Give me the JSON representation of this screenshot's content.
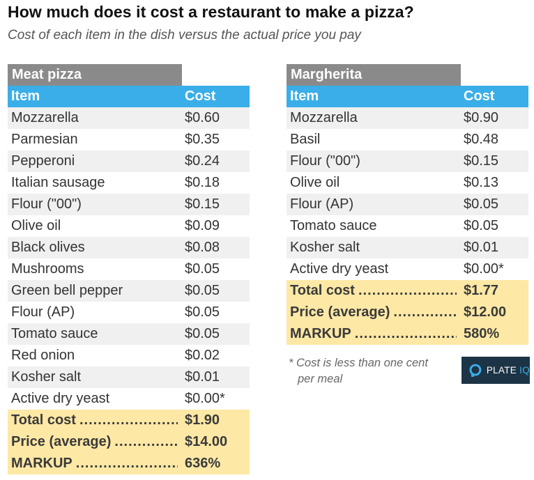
{
  "title": "How much does it cost a restaurant to make a pizza?",
  "subtitle": "Cost of each item in the dish versus the actual price you pay",
  "column_headers": {
    "item": "Item",
    "cost": "Cost"
  },
  "tables": {
    "meat": {
      "name": "Meat pizza",
      "rows": [
        {
          "item": "Mozzarella",
          "cost": "$0.60"
        },
        {
          "item": "Parmesian",
          "cost": "$0.35"
        },
        {
          "item": "Pepperoni",
          "cost": "$0.24"
        },
        {
          "item": "Italian sausage",
          "cost": "$0.18"
        },
        {
          "item": "Flour (\"00\")",
          "cost": "$0.15"
        },
        {
          "item": "Olive oil",
          "cost": "$0.09"
        },
        {
          "item": "Black olives",
          "cost": "$0.08"
        },
        {
          "item": "Mushrooms",
          "cost": "$0.05"
        },
        {
          "item": "Green bell pepper",
          "cost": "$0.05"
        },
        {
          "item": "Flour (AP)",
          "cost": "$0.05"
        },
        {
          "item": "Tomato sauce",
          "cost": "$0.05"
        },
        {
          "item": "Red onion",
          "cost": "$0.02"
        },
        {
          "item": "Kosher salt",
          "cost": "$0.01"
        },
        {
          "item": "Active dry yeast",
          "cost": "$0.00*"
        }
      ],
      "summary": [
        {
          "label": "Total cost",
          "value": "$1.90"
        },
        {
          "label": "Price (average)",
          "value": "$14.00"
        },
        {
          "label": "MARKUP",
          "value": "636%"
        }
      ]
    },
    "margherita": {
      "name": "Margherita",
      "rows": [
        {
          "item": "Mozzarella",
          "cost": "$0.90"
        },
        {
          "item": "Basil",
          "cost": "$0.48"
        },
        {
          "item": "Flour (\"00\")",
          "cost": "$0.15"
        },
        {
          "item": "Olive oil",
          "cost": "$0.13"
        },
        {
          "item": "Flour (AP)",
          "cost": "$0.05"
        },
        {
          "item": "Tomato sauce",
          "cost": "$0.05"
        },
        {
          "item": "Kosher salt",
          "cost": "$0.01"
        },
        {
          "item": "Active dry yeast",
          "cost": "$0.00*"
        }
      ],
      "summary": [
        {
          "label": "Total cost",
          "value": "$1.77"
        },
        {
          "label": "Price (average)",
          "value": "$12.00"
        },
        {
          "label": "MARKUP",
          "value": "580%"
        }
      ]
    }
  },
  "footnote": {
    "line1": "* Cost is less than one cent",
    "line2": "per meal"
  },
  "logo": {
    "text_primary": "PLATE",
    "text_accent": "IQ",
    "icon": "plate-iq-icon"
  },
  "colors": {
    "header_blue": "#3aaee8",
    "name_bar_gray": "#8a8a8a",
    "alt_row": "#f0f0f0",
    "summary_yellow": "#fde8a5",
    "logo_bg": "#1d3446"
  }
}
